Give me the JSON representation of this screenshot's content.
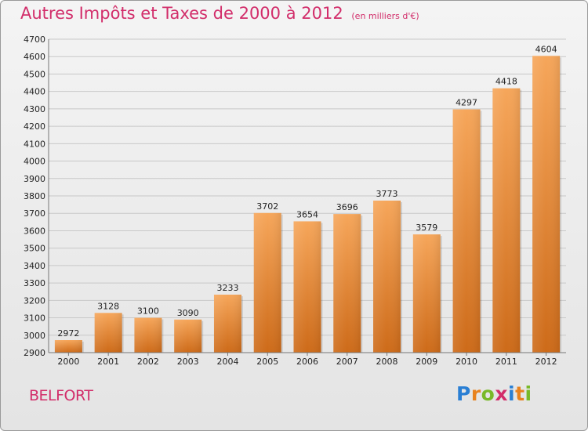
{
  "header": {
    "title": "Autres Impôts et Taxes de 2000 à 2012",
    "subtitle": "(en milliers d'€)"
  },
  "footer": {
    "place": "BELFORT",
    "logo_letters": [
      "P",
      "r",
      "o",
      "x",
      "i",
      "t",
      "i"
    ],
    "logo_colors": [
      "#2a7fd4",
      "#e8821e",
      "#79b928",
      "#d22d6a",
      "#2a7fd4",
      "#e8821e",
      "#79b928"
    ]
  },
  "colors": {
    "title": "#d22d6a",
    "bar_light": "#f6a65a",
    "bar_dark": "#cd6a18"
  },
  "chart_data": {
    "type": "bar",
    "categories": [
      "2000",
      "2001",
      "2002",
      "2003",
      "2004",
      "2005",
      "2006",
      "2007",
      "2008",
      "2009",
      "2010",
      "2011",
      "2012"
    ],
    "values": [
      2972,
      3128,
      3100,
      3090,
      3233,
      3702,
      3654,
      3696,
      3773,
      3579,
      4297,
      4418,
      4604
    ],
    "ylim": [
      2900,
      4700
    ],
    "yticks": [
      2900,
      3000,
      3100,
      3200,
      3300,
      3400,
      3500,
      3600,
      3700,
      3800,
      3900,
      4000,
      4100,
      4200,
      4300,
      4400,
      4500,
      4600,
      4700
    ],
    "grid": true,
    "data_labels": true
  }
}
